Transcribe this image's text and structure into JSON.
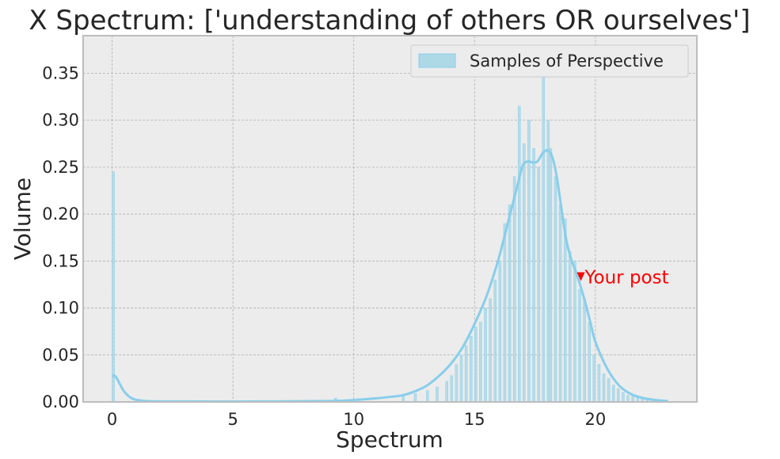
{
  "chart_data": {
    "type": "bar",
    "title": "X Spectrum: ['understanding of others OR ourselves']",
    "xlabel": "Spectrum",
    "ylabel": "Volume",
    "xlim": [
      -1.2,
      24.2
    ],
    "ylim": [
      0,
      0.39
    ],
    "xticks": [
      0,
      5,
      10,
      15,
      20
    ],
    "yticks": [
      0.0,
      0.05,
      0.1,
      0.15,
      0.2,
      0.25,
      0.3,
      0.35
    ],
    "xtick_labels": [
      "0",
      "5",
      "10",
      "15",
      "20"
    ],
    "ytick_labels": [
      "0.00",
      "0.05",
      "0.10",
      "0.15",
      "0.20",
      "0.25",
      "0.30",
      "0.35"
    ],
    "grid": true,
    "legend_position": "top-right",
    "colors": {
      "bars": "#add8e6",
      "bar_edge": "#87ceeb",
      "kde": "#87ceeb",
      "background": "#ececec",
      "grid": "#b0b0b0",
      "annotation": "#ff0000",
      "frame": "#bdbdbd"
    },
    "series": [
      {
        "name": "Samples of Perspective",
        "type": "histogram",
        "bin_width": 0.1,
        "x": [
          0.05,
          9.25,
          12.05,
          12.55,
          13.05,
          13.45,
          13.85,
          14.05,
          14.25,
          14.45,
          14.65,
          14.85,
          15.05,
          15.25,
          15.45,
          15.65,
          15.85,
          16.05,
          16.25,
          16.45,
          16.65,
          16.85,
          17.05,
          17.25,
          17.45,
          17.65,
          17.85,
          18.05,
          18.15,
          18.35,
          18.55,
          18.75,
          18.95,
          19.15,
          19.35,
          19.55,
          19.75,
          19.95,
          20.15,
          20.35,
          20.55,
          20.75,
          20.95,
          21.15,
          21.35,
          21.55,
          21.75,
          21.95,
          22.15,
          22.35,
          22.55,
          22.75
        ],
        "values": [
          0.245,
          0.004,
          0.006,
          0.009,
          0.012,
          0.016,
          0.022,
          0.028,
          0.04,
          0.05,
          0.06,
          0.07,
          0.08,
          0.085,
          0.1,
          0.11,
          0.13,
          0.15,
          0.19,
          0.21,
          0.24,
          0.315,
          0.275,
          0.3,
          0.27,
          0.25,
          0.36,
          0.3,
          0.27,
          0.24,
          0.21,
          0.195,
          0.16,
          0.15,
          0.12,
          0.11,
          0.085,
          0.05,
          0.04,
          0.03,
          0.025,
          0.018,
          0.014,
          0.01,
          0.007,
          0.006,
          0.005,
          0.004,
          0.003,
          0.003,
          0.002,
          0.002
        ]
      },
      {
        "type": "kde",
        "x": [
          0.0,
          0.1,
          0.2,
          0.3,
          0.5,
          0.8,
          1.2,
          2,
          5,
          9,
          10,
          11,
          12,
          12.5,
          13,
          13.5,
          14,
          14.5,
          15,
          15.5,
          16,
          16.5,
          16.8,
          17.0,
          17.2,
          17.4,
          17.6,
          17.8,
          18.0,
          18.2,
          18.4,
          18.6,
          18.8,
          19.0,
          19.2,
          19.4,
          19.6,
          19.8,
          20,
          20.5,
          21,
          21.5,
          22,
          22.5,
          23
        ],
        "values": [
          0.027,
          0.028,
          0.025,
          0.02,
          0.011,
          0.004,
          0.0015,
          0.0005,
          0.0003,
          0.001,
          0.002,
          0.004,
          0.007,
          0.011,
          0.017,
          0.027,
          0.04,
          0.058,
          0.083,
          0.113,
          0.153,
          0.203,
          0.233,
          0.252,
          0.256,
          0.255,
          0.256,
          0.264,
          0.268,
          0.262,
          0.24,
          0.205,
          0.172,
          0.152,
          0.138,
          0.122,
          0.104,
          0.084,
          0.064,
          0.035,
          0.017,
          0.008,
          0.004,
          0.002,
          0.001
        ]
      }
    ],
    "annotation": {
      "text": "Your post",
      "x": 19.4,
      "y": 0.133
    }
  }
}
